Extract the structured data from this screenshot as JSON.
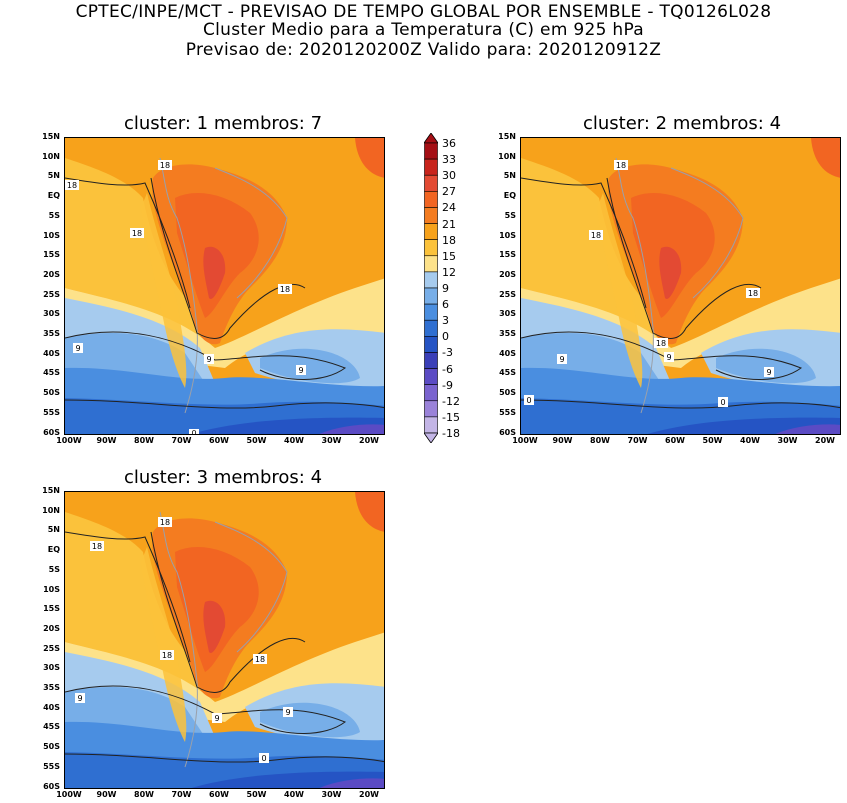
{
  "header": {
    "line1": "CPTEC/INPE/MCT - PREVISAO DE TEMPO GLOBAL POR ENSEMBLE - TQ0126L028",
    "line2": "Cluster Medio para a Temperatura (C) em 925 hPa",
    "line3": "Previsao de: 2020120200Z   Valido para: 2020120912Z"
  },
  "panels": [
    {
      "title": "cluster: 1   membros: 7",
      "labels": {
        "a": "18",
        "b": "18",
        "c": "18",
        "d": "18",
        "e": "9",
        "f": "9",
        "g": "9",
        "h": "0"
      }
    },
    {
      "title": "cluster: 2   membros: 4",
      "labels": {
        "a": "18",
        "b": "18",
        "c": "18",
        "d": "18",
        "e": "9",
        "f": "9",
        "g": "9",
        "h": "0",
        "i": "0"
      }
    },
    {
      "title": "cluster: 3   membros: 4",
      "labels": {
        "a": "18",
        "b": "18",
        "c": "18",
        "d": "18",
        "e": "9",
        "f": "9",
        "g": "9",
        "h": "0"
      }
    }
  ],
  "axes": {
    "lat_ticks": [
      "15N",
      "10N",
      "5N",
      "EQ",
      "5S",
      "10S",
      "15S",
      "20S",
      "25S",
      "30S",
      "35S",
      "40S",
      "45S",
      "50S",
      "55S",
      "60S"
    ],
    "lon_ticks": [
      "100W",
      "90W",
      "80W",
      "70W",
      "60W",
      "50W",
      "40W",
      "30W",
      "20W"
    ]
  },
  "colorbar": {
    "labels": [
      "36",
      "33",
      "30",
      "27",
      "24",
      "21",
      "18",
      "15",
      "12",
      "9",
      "6",
      "3",
      "0",
      "-3",
      "-6",
      "-9",
      "-12",
      "-15",
      "-18"
    ],
    "colors": [
      "#a50f15",
      "#c8241c",
      "#e34a33",
      "#f26522",
      "#f47c20",
      "#f7a21b",
      "#fbc23b",
      "#fde28a",
      "#a6cbee",
      "#77aee8",
      "#4a8ee0",
      "#2f6fd1",
      "#2554c4",
      "#3a3fb8",
      "#5b4bc4",
      "#7a63cf",
      "#9a82d9",
      "#c3b5e6"
    ]
  }
}
